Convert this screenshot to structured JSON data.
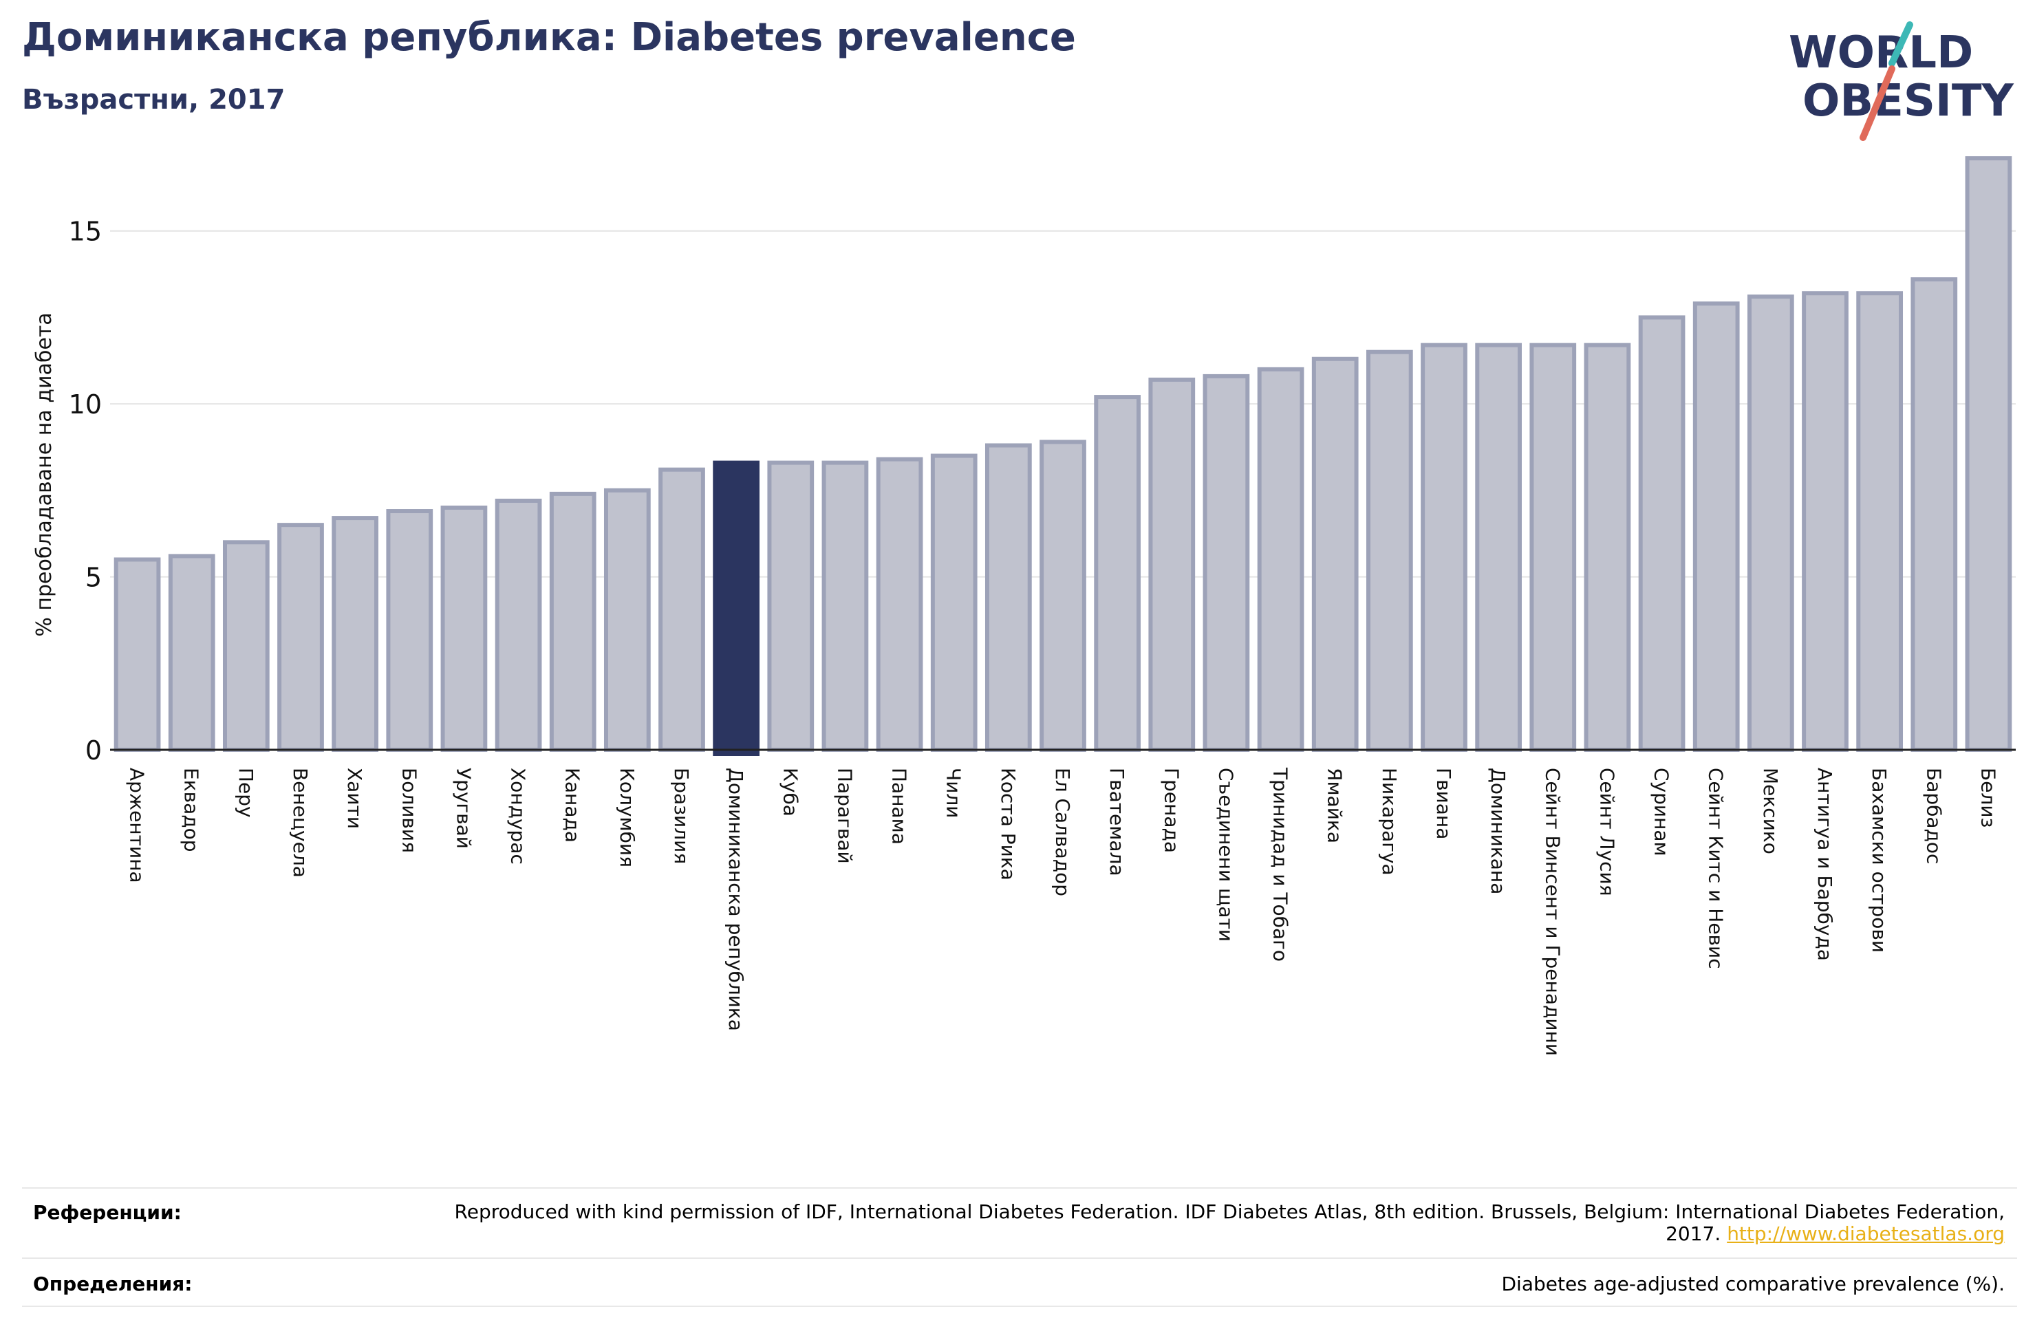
{
  "header": {
    "title": "Доминиканска република: Diabetes prevalence",
    "subtitle": "Възрастни, 2017"
  },
  "logo": {
    "line1": "WORLD",
    "line2": "OBESITY"
  },
  "colors": {
    "title": "#2b3560",
    "bar": "#c0c2ce",
    "bar_stroke": "#9da2b8",
    "highlight": "#2b3560",
    "logo_accent_teal": "#3db8b6",
    "logo_accent_red": "#e06a5a",
    "link": "#e8b017"
  },
  "chart_data": {
    "type": "bar",
    "ylabel": "% преобладаване на диабета",
    "ylim": [
      0,
      17.5
    ],
    "yticks": [
      0,
      5,
      10,
      15
    ],
    "grid": true,
    "highlight_category": "Доминиканска република",
    "categories": [
      "Аржентина",
      "Еквадор",
      "Перу",
      "Венецуела",
      "Хаити",
      "Боливия",
      "Уругвай",
      "Хондурас",
      "Канада",
      "Колумбия",
      "Бразилия",
      "Доминиканска република",
      "Куба",
      "Парагвай",
      "Панама",
      "Чили",
      "Коста Рика",
      "Ел Салвадор",
      "Гватемала",
      "Гренада",
      "Съединени щати",
      "Тринидад и Тобаго",
      "Ямайка",
      "Никарагуа",
      "Гвиана",
      "Доминикана",
      "Сейнт Винсент и Гренадини",
      "Сейнт Лусия",
      "Суринам",
      "Сейнт Китс и Невис",
      "Мексико",
      "Антигуа и Барбуда",
      "Бахамски острови",
      "Барбадос",
      "Белиз"
    ],
    "values": [
      5.5,
      5.6,
      6.0,
      6.5,
      6.7,
      6.9,
      7.0,
      7.2,
      7.4,
      7.5,
      8.1,
      8.3,
      8.3,
      8.3,
      8.4,
      8.5,
      8.8,
      8.9,
      10.2,
      10.7,
      10.8,
      11.0,
      11.3,
      11.5,
      11.7,
      11.7,
      11.7,
      11.7,
      12.5,
      12.9,
      13.1,
      13.2,
      13.2,
      13.6,
      17.1
    ]
  },
  "footer": {
    "references_label": "Референции:",
    "references_text": "Reproduced with kind permission of IDF, International Diabetes Federation. IDF Diabetes Atlas, 8th edition. Brussels, Belgium: International Diabetes Federation, 2017.",
    "references_link": "http://www.diabetesatlas.org",
    "definitions_label": "Определения:",
    "definitions_text": "Diabetes age-adjusted comparative prevalence (%)."
  }
}
